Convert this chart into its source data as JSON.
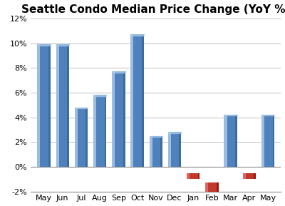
{
  "categories": [
    "May",
    "Jun",
    "Jul",
    "Aug",
    "Sep",
    "Oct",
    "Nov",
    "Dec",
    "Jan",
    "Feb",
    "Mar",
    "Apr",
    "May"
  ],
  "values": [
    9.9,
    9.9,
    4.8,
    5.8,
    7.7,
    10.7,
    2.5,
    2.8,
    -0.5,
    -1.3,
    4.2,
    -0.5,
    4.2
  ],
  "bar_color_main": "#4F81BD",
  "bar_color_highlight": "#A8C8E8",
  "bar_color_shadow": "#2E5F8A",
  "bar_color_neg_main": "#C0392B",
  "bar_color_neg_highlight": "#E07070",
  "bar_color_neg_shadow": "#8B0000",
  "title": "Seattle Condo Median Price Change (YoY %)",
  "title_fontsize": 11,
  "title_fontweight": "bold",
  "ylim": [
    -2,
    12
  ],
  "yticks": [
    -2,
    0,
    2,
    4,
    6,
    8,
    10,
    12
  ],
  "ytick_labels": [
    "-2%",
    "0%",
    "2%",
    "4%",
    "6%",
    "8%",
    "10%",
    "12%"
  ],
  "background_color": "#FFFFFF",
  "plot_bg_color": "#FFFFFF",
  "grid_color": "#C0C0C0",
  "bar_width": 0.7,
  "tick_fontsize": 8
}
